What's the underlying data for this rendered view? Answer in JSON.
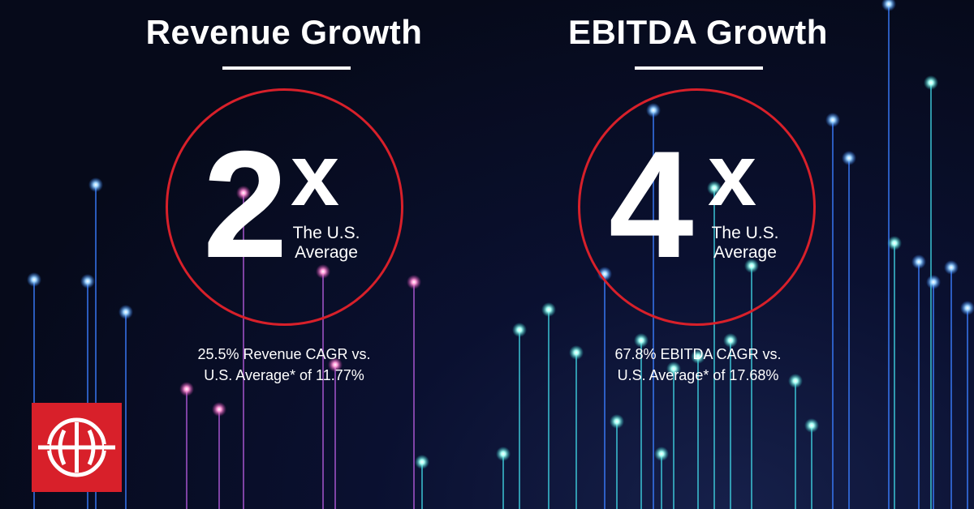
{
  "revenue": {
    "title": "Revenue Growth",
    "multiplier": "2",
    "x": "x",
    "sub_line1": "The U.S.",
    "sub_line2": "Average",
    "stat_line1": "25.5% Revenue CAGR vs.",
    "stat_line2": "U.S. Average* of 11.77%"
  },
  "ebitda": {
    "title": "EBITDA Growth",
    "multiplier": "4",
    "x": "x",
    "sub_line1": "The U.S.",
    "sub_line2": "Average",
    "stat_line1": "67.8% EBITDA CAGR vs.",
    "stat_line2": "U.S. Average* of 17.68%"
  },
  "colors": {
    "accent": "#d8202a",
    "text": "#ffffff",
    "background": "#070b1c"
  },
  "logo": {
    "icon": "company-logo-icon"
  }
}
